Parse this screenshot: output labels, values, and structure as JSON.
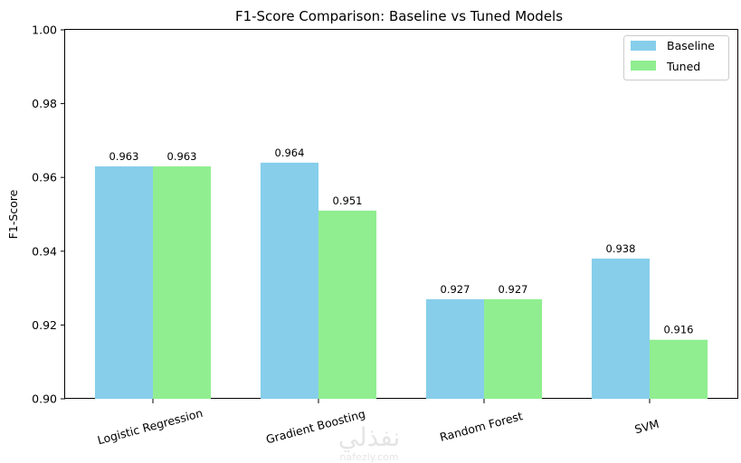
{
  "chart_data": {
    "type": "bar",
    "title": "F1-Score Comparison: Baseline vs Tuned Models",
    "xlabel": "",
    "ylabel": "F1-Score",
    "ylim": [
      0.9,
      1.0
    ],
    "yticks": [
      "0.90",
      "0.92",
      "0.94",
      "0.96",
      "0.98",
      "1.00"
    ],
    "ytick_values": [
      0.9,
      0.92,
      0.94,
      0.96,
      0.98,
      1.0
    ],
    "categories": [
      "Logistic Regression",
      "Gradient Boosting",
      "Random Forest",
      "SVM"
    ],
    "series": [
      {
        "name": "Baseline",
        "color": "#87CEEB",
        "values": [
          0.963,
          0.964,
          0.927,
          0.938
        ],
        "labels": [
          "0.963",
          "0.964",
          "0.927",
          "0.938"
        ]
      },
      {
        "name": "Tuned",
        "color": "#90EE90",
        "values": [
          0.963,
          0.951,
          0.927,
          0.916
        ],
        "labels": [
          "0.963",
          "0.951",
          "0.927",
          "0.916"
        ]
      }
    ],
    "legend": "top-right",
    "grid": false
  },
  "watermark": {
    "arabic": "نفذلي",
    "latin": "nafezly.com"
  }
}
